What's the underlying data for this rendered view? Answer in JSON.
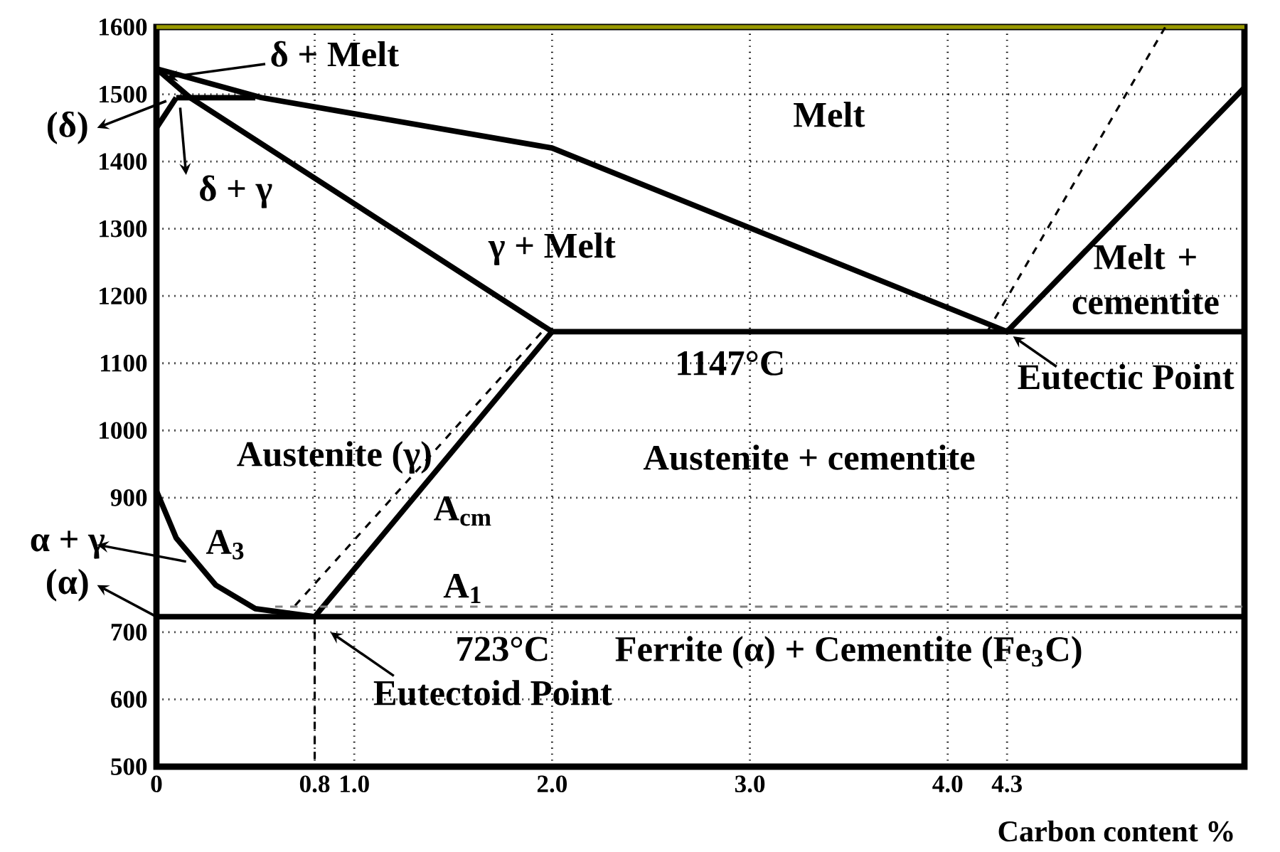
{
  "chart_data": {
    "type": "line",
    "xlabel": "Carbon content %",
    "xlim": [
      0,
      5.5
    ],
    "ylim": [
      500,
      1600
    ],
    "xticks": [
      0,
      0.8,
      {
        "value": 1.0,
        "label": "1.0"
      },
      {
        "value": 2.0,
        "label": "2.0"
      },
      {
        "value": 3.0,
        "label": "3.0"
      },
      {
        "value": 4.0,
        "label": "4.0"
      },
      4.3
    ],
    "yticks": [
      500,
      600,
      700,
      900,
      1000,
      1100,
      1200,
      1300,
      1400,
      1500,
      1600
    ],
    "grid": true,
    "marker": "none",
    "series": [
      {
        "color": "#000000",
        "x": [
          0,
          0.53,
          2.0,
          4.3
        ],
        "values": [
          1538,
          1495,
          1420,
          1147
        ]
      },
      {
        "color": "#000000",
        "x": [
          0,
          0.17,
          2.0
        ],
        "values": [
          1538,
          1495,
          1147
        ]
      },
      {
        "color": "#000000",
        "x": [
          0.1,
          0.5
        ],
        "values": [
          1495,
          1495
        ]
      },
      {
        "color": "#000000",
        "x": [
          0,
          0.1
        ],
        "values": [
          1450,
          1495
        ]
      },
      {
        "color": "#000000",
        "x": [
          0.8,
          2.0
        ],
        "values": [
          723,
          1147
        ]
      },
      {
        "color": "#000000",
        "x": [
          0,
          0.1,
          0.3,
          0.5,
          0.8
        ],
        "values": [
          910,
          840,
          770,
          735,
          723
        ]
      },
      {
        "color": "#000000",
        "x": [
          2.0,
          5.5
        ],
        "values": [
          1147,
          1147
        ]
      },
      {
        "color": "#000000",
        "x": [
          0,
          5.5
        ],
        "values": [
          723,
          723
        ]
      },
      {
        "color": "#000000",
        "x": [
          4.3,
          5.5
        ],
        "values": [
          1147,
          1510
        ]
      },
      {
        "color": "#000000",
        "line_style": "dashed",
        "x": [
          0.65,
          1.95
        ],
        "values": [
          723,
          1147
        ]
      },
      {
        "color": "#000000",
        "line_style": "dashed",
        "x": [
          4.2,
          5.1
        ],
        "values": [
          1147,
          1600
        ]
      },
      {
        "color": "#808080",
        "line_style": "dashed",
        "x": [
          0.6,
          5.5
        ],
        "values": [
          738,
          738
        ]
      },
      {
        "color": "#000000",
        "line_style": "dashed",
        "x": [
          0.8,
          0.8
        ],
        "values": [
          723,
          500
        ]
      }
    ],
    "ref_lines": [
      {
        "axis": "y",
        "value": 1600,
        "color": "#999900"
      }
    ],
    "annotations": [
      "δ + Melt",
      "Melt",
      "δ + γ",
      "γ + Melt",
      "Melt + cementite",
      "1147°C",
      "Eutectic Point",
      "Austenite (γ)",
      "Austenite + cementite",
      "A$_{cm}$",
      "A$_{3}$",
      "A$_{1}$",
      "723°C",
      "Ferrite (α) + Cementite (Fe$_{3}$C)",
      "Eutectoid Point",
      "(δ)",
      "α + γ",
      "(α)"
    ]
  }
}
